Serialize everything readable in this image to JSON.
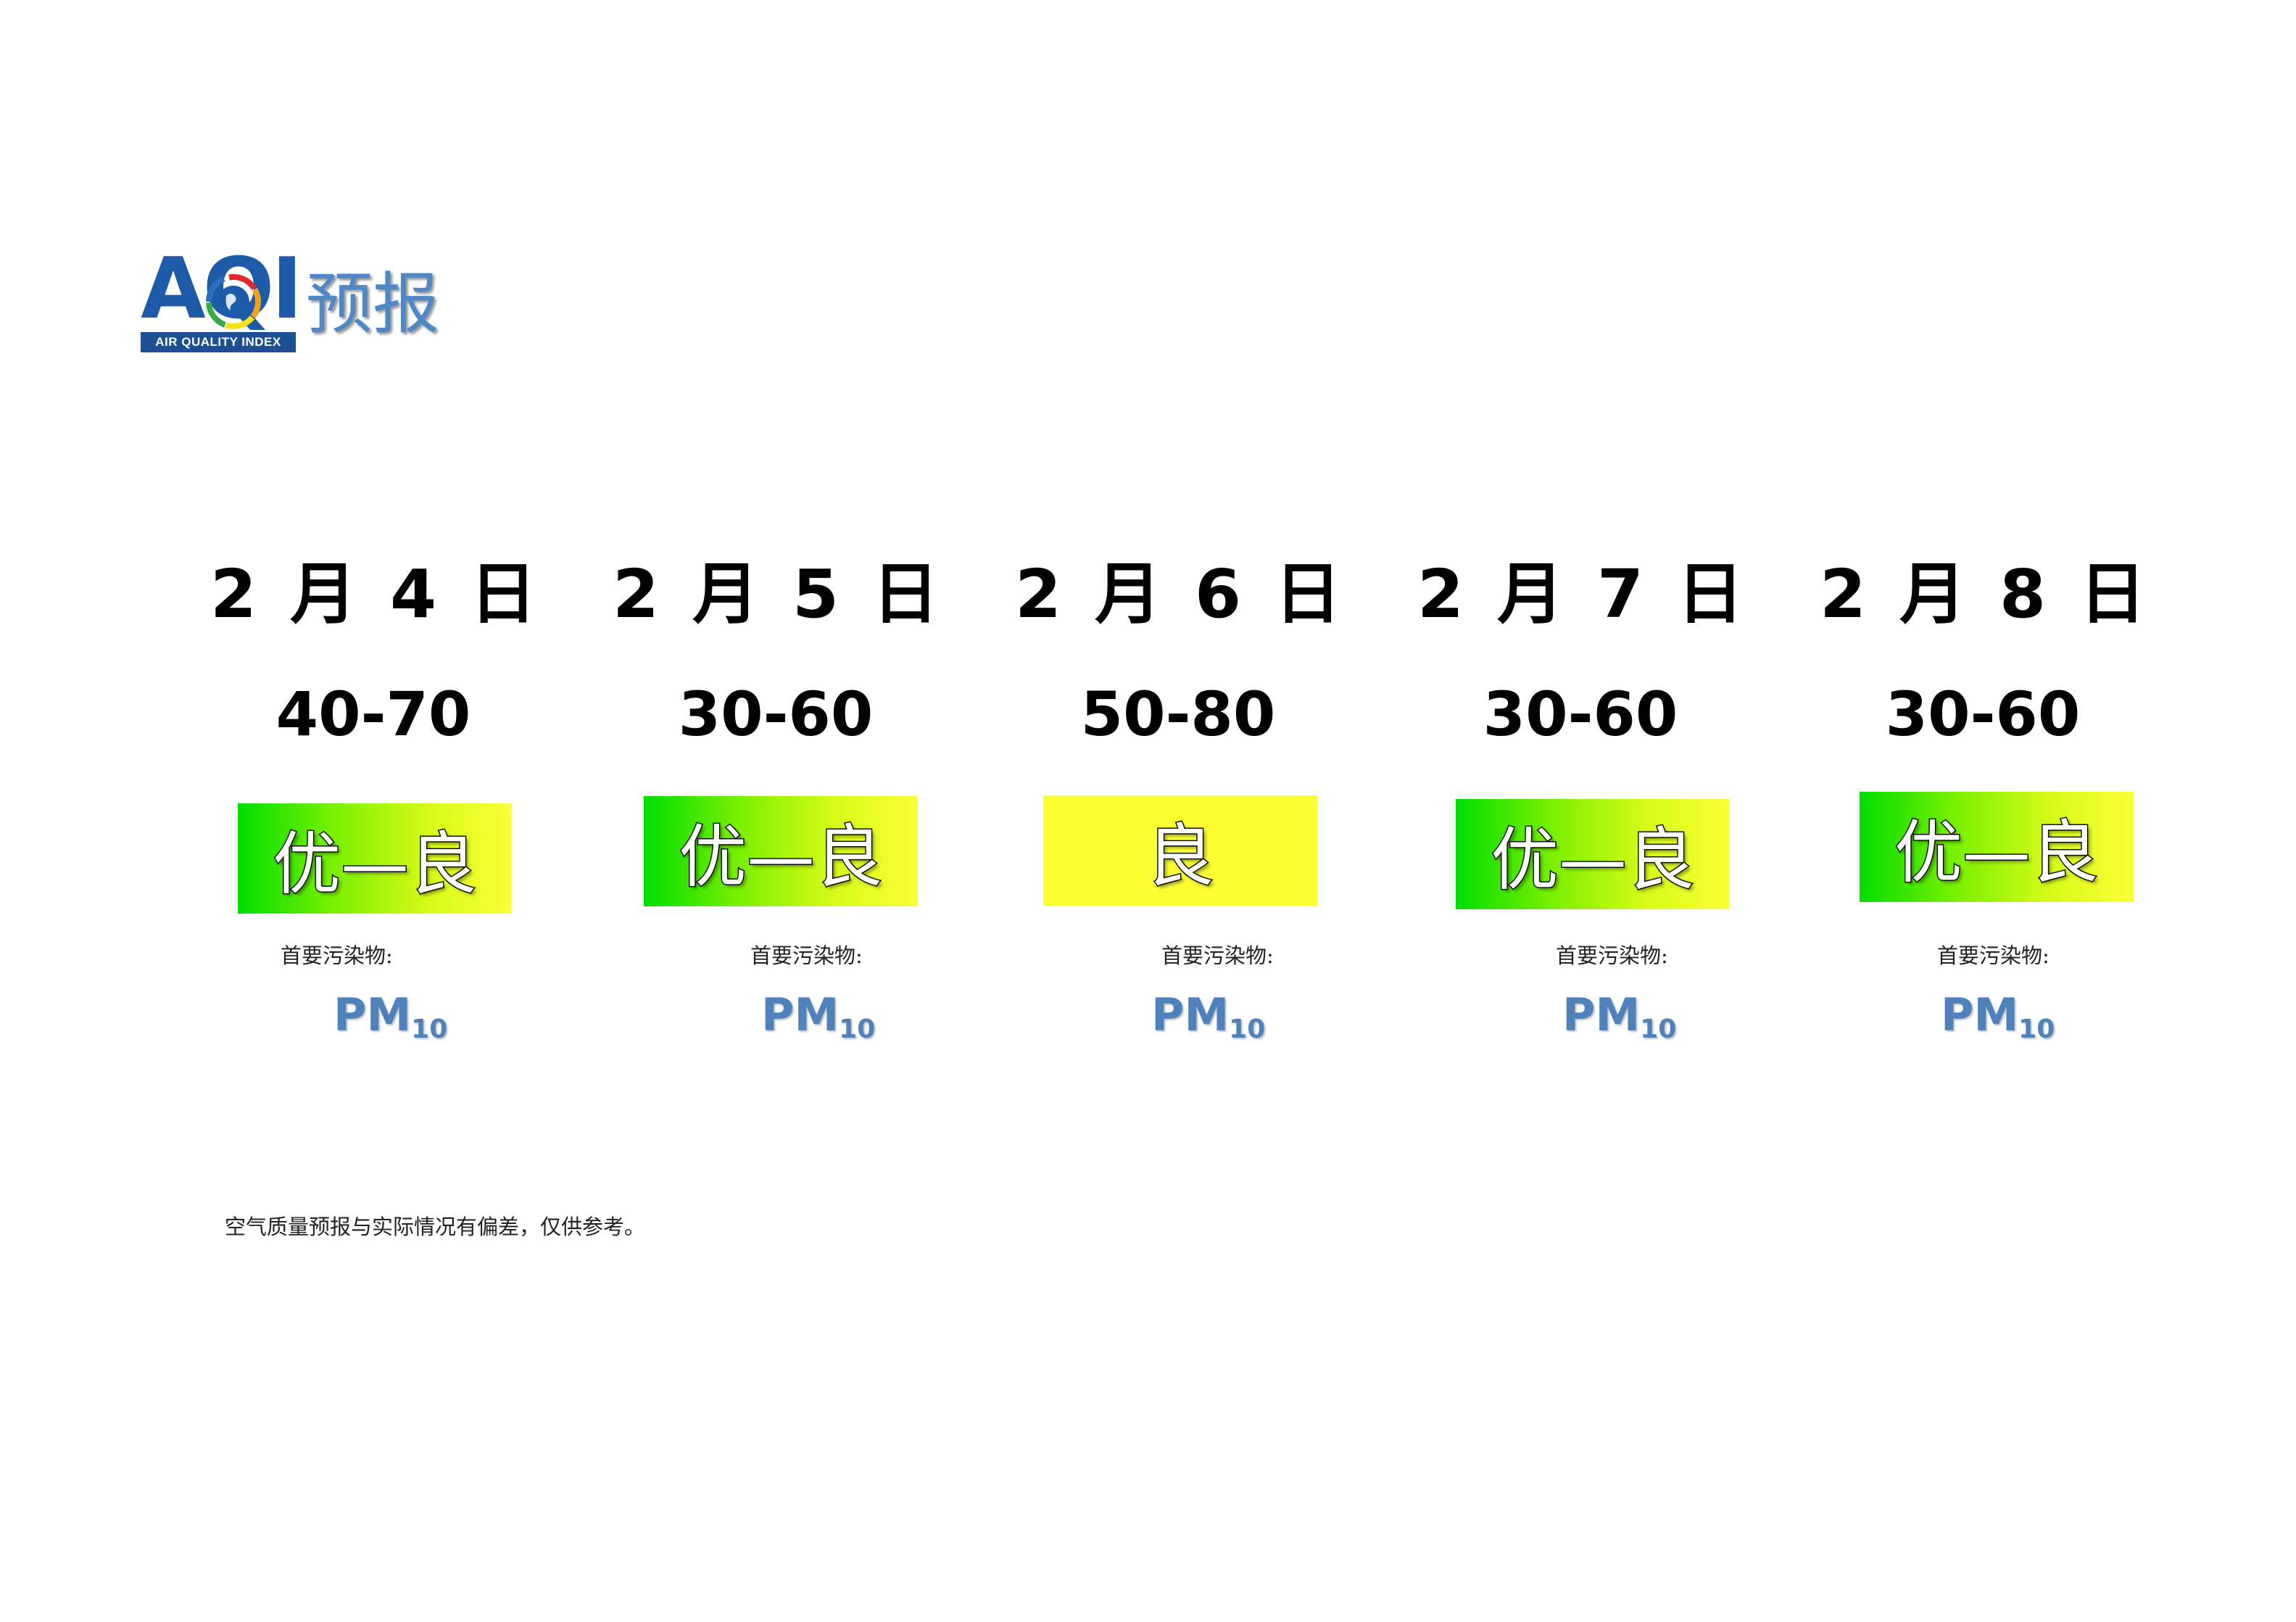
{
  "logo": {
    "word": "AQI",
    "subtitle": "AIR QUALITY INDEX",
    "title": "预报"
  },
  "days": [
    {
      "date": "2 月 4 日",
      "range": "40-70",
      "level": "优—良",
      "level_color": "gradient-green-yellow",
      "pollutant_label": "首要污染物:",
      "pollutant": "PM",
      "pollutant_sub": "10"
    },
    {
      "date": "2 月 5 日",
      "range": "30-60",
      "level": "优—良",
      "level_color": "gradient-green-yellow",
      "pollutant_label": "首要污染物:",
      "pollutant": "PM",
      "pollutant_sub": "10"
    },
    {
      "date": "2 月 6 日",
      "range": "50-80",
      "level": "良",
      "level_color": "#fbff32",
      "pollutant_label": "首要污染物:",
      "pollutant": "PM",
      "pollutant_sub": "10"
    },
    {
      "date": "2 月 7 日",
      "range": "30-60",
      "level": "优—良",
      "level_color": "gradient-green-yellow",
      "pollutant_label": "首要污染物:",
      "pollutant": "PM",
      "pollutant_sub": "10"
    },
    {
      "date": "2 月 8 日",
      "range": "30-60",
      "level": "优—良",
      "level_color": "gradient-green-yellow",
      "pollutant_label": "首要污染物:",
      "pollutant": "PM",
      "pollutant_sub": "10"
    }
  ],
  "note": "空气质量预报与实际情况有偏差，仅供参考。",
  "colors": {
    "logo_blue": "#1d5aa8",
    "title_blue": "#4f88c9",
    "pollutant_blue": "#4f81bd",
    "good_green": "#00dd00",
    "moderate_yellow": "#fbff32"
  }
}
